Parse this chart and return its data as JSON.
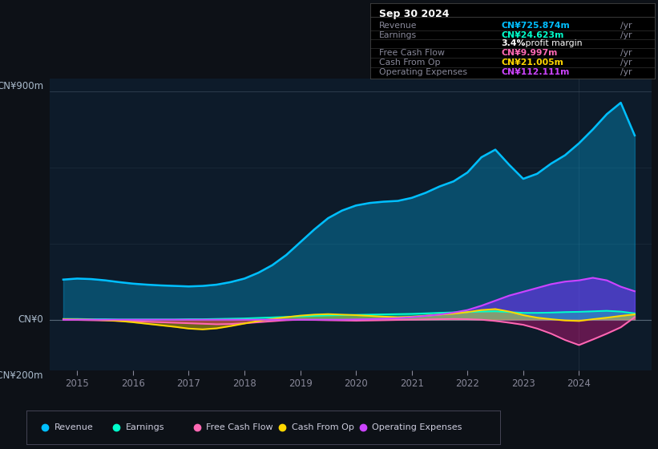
{
  "bg_color": "#0d1117",
  "chart_bg": "#0d1b2a",
  "ylabel_top": "CN¥900m",
  "ylabel_zero": "CN¥0",
  "ylabel_bottom": "-CN¥200m",
  "ylim": [
    -200,
    950
  ],
  "xlim": [
    2014.5,
    2025.3
  ],
  "xticks": [
    2015,
    2016,
    2017,
    2018,
    2019,
    2020,
    2021,
    2022,
    2023,
    2024
  ],
  "info_box": {
    "title": "Sep 30 2024",
    "rows": [
      {
        "label": "Revenue",
        "value": "CN¥725.874m",
        "value_color": "#00bfff"
      },
      {
        "label": "Earnings",
        "value": "CN¥24.623m",
        "value_color": "#00ffcc"
      },
      {
        "label": "",
        "value": "3.4% profit margin",
        "value_color": "#ffffff"
      },
      {
        "label": "Free Cash Flow",
        "value": "CN¥9.997m",
        "value_color": "#ff69b4"
      },
      {
        "label": "Cash From Op",
        "value": "CN¥21.005m",
        "value_color": "#ffd700"
      },
      {
        "label": "Operating Expenses",
        "value": "CN¥112.111m",
        "value_color": "#cc44ff"
      }
    ]
  },
  "legend": [
    {
      "label": "Revenue",
      "color": "#00bfff"
    },
    {
      "label": "Earnings",
      "color": "#00ffcc"
    },
    {
      "label": "Free Cash Flow",
      "color": "#ff69b4"
    },
    {
      "label": "Cash From Op",
      "color": "#ffd700"
    },
    {
      "label": "Operating Expenses",
      "color": "#cc44ff"
    }
  ],
  "series": {
    "years": [
      2014.75,
      2015.0,
      2015.25,
      2015.5,
      2015.75,
      2016.0,
      2016.25,
      2016.5,
      2016.75,
      2017.0,
      2017.25,
      2017.5,
      2017.75,
      2018.0,
      2018.25,
      2018.5,
      2018.75,
      2019.0,
      2019.25,
      2019.5,
      2019.75,
      2020.0,
      2020.25,
      2020.5,
      2020.75,
      2021.0,
      2021.25,
      2021.5,
      2021.75,
      2022.0,
      2022.25,
      2022.5,
      2022.75,
      2023.0,
      2023.25,
      2023.5,
      2023.75,
      2024.0,
      2024.25,
      2024.5,
      2024.75,
      2025.0
    ],
    "revenue": [
      158,
      162,
      160,
      155,
      148,
      142,
      138,
      135,
      133,
      131,
      133,
      138,
      148,
      162,
      185,
      215,
      255,
      305,
      355,
      400,
      430,
      450,
      460,
      465,
      468,
      480,
      500,
      525,
      545,
      580,
      640,
      670,
      610,
      555,
      575,
      615,
      648,
      695,
      750,
      810,
      855,
      726
    ],
    "earnings": [
      3,
      3,
      2,
      2,
      1,
      1,
      1,
      1,
      1,
      2,
      2,
      3,
      4,
      5,
      7,
      9,
      11,
      13,
      15,
      17,
      18,
      19,
      20,
      21,
      22,
      23,
      25,
      27,
      29,
      30,
      32,
      33,
      30,
      27,
      27,
      28,
      30,
      31,
      33,
      35,
      32,
      25
    ],
    "free_cash_flow": [
      -1,
      -1,
      -2,
      -3,
      -5,
      -6,
      -8,
      -10,
      -12,
      -14,
      -16,
      -18,
      -17,
      -14,
      -10,
      -6,
      -2,
      0,
      -1,
      -2,
      -3,
      -4,
      -3,
      -2,
      -1,
      0,
      1,
      2,
      3,
      2,
      0,
      -5,
      -12,
      -20,
      -35,
      -55,
      -80,
      -100,
      -78,
      -55,
      -30,
      10
    ],
    "cash_from_op": [
      2,
      1,
      0,
      -2,
      -5,
      -10,
      -16,
      -22,
      -28,
      -35,
      -38,
      -34,
      -25,
      -15,
      -5,
      3,
      10,
      16,
      20,
      22,
      20,
      18,
      15,
      12,
      10,
      12,
      16,
      20,
      24,
      30,
      38,
      42,
      32,
      18,
      8,
      2,
      -3,
      -5,
      2,
      8,
      15,
      21
    ],
    "operating_expenses": [
      0,
      0,
      0,
      0,
      0,
      0,
      0,
      0,
      0,
      0,
      0,
      0,
      0,
      0,
      0,
      0,
      0,
      0,
      0,
      0,
      0,
      1,
      2,
      4,
      6,
      10,
      15,
      20,
      28,
      38,
      55,
      75,
      95,
      110,
      125,
      140,
      150,
      155,
      165,
      155,
      130,
      112
    ]
  }
}
